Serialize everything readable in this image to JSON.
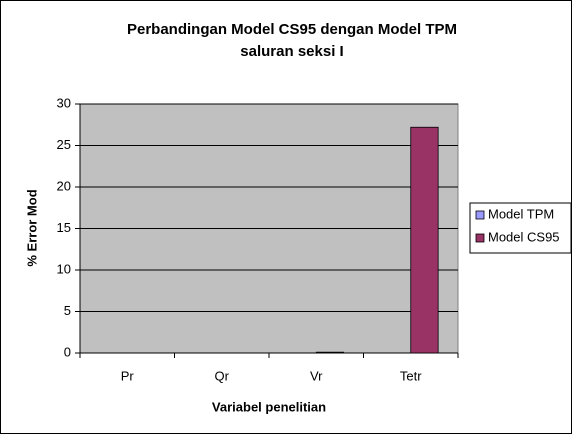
{
  "chart_data": {
    "type": "bar",
    "title": [
      "Perbandingan Model CS95 dengan Model TPM",
      "saluran seksi I"
    ],
    "x_label": "Variabel penelitian",
    "y_label": "% Error Mod",
    "categories": [
      "Pr",
      "Qr",
      "Vr",
      "Tetr"
    ],
    "series": [
      {
        "name": "Model TPM",
        "color": "#9999ff",
        "values": [
          0,
          0,
          0,
          0
        ]
      },
      {
        "name": "Model CS95",
        "color": "#993366",
        "values": [
          0,
          0,
          0.1,
          27.2
        ]
      }
    ],
    "ylim": [
      0,
      30
    ],
    "yticks": [
      0,
      5,
      10,
      15,
      20,
      25,
      30
    ],
    "grid": true,
    "legend": "right"
  }
}
